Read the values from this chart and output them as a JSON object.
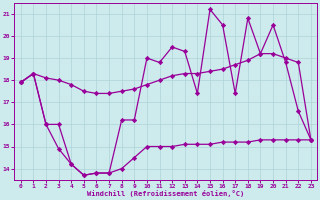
{
  "xlabel": "Windchill (Refroidissement éolien,°C)",
  "x_ticks": [
    0,
    1,
    2,
    3,
    4,
    5,
    6,
    7,
    8,
    9,
    10,
    11,
    12,
    13,
    14,
    15,
    16,
    17,
    18,
    19,
    20,
    21,
    22,
    23
  ],
  "ylim": [
    13.5,
    21.5
  ],
  "xlim": [
    -0.5,
    23.5
  ],
  "yticks": [
    14,
    15,
    16,
    17,
    18,
    19,
    20,
    21
  ],
  "bg_color": "#cdeaed",
  "grid_color": "#acd4d8",
  "line_color": "#990099",
  "series": [
    {
      "x": [
        0,
        1,
        2,
        3,
        4,
        5,
        6,
        7,
        8,
        9,
        10,
        11,
        12,
        13,
        14,
        15,
        16,
        17,
        18,
        19,
        20,
        21,
        22,
        23
      ],
      "y": [
        17.9,
        18.3,
        18.1,
        18.0,
        17.8,
        17.5,
        17.4,
        17.4,
        17.5,
        17.6,
        17.8,
        18.0,
        18.2,
        18.3,
        18.3,
        18.4,
        18.5,
        18.7,
        18.9,
        19.2,
        19.2,
        19.0,
        18.8,
        15.3
      ]
    },
    {
      "x": [
        0,
        1,
        2,
        3,
        4,
        5,
        6,
        7,
        8,
        9,
        10,
        11,
        12,
        13,
        14,
        15,
        16,
        17,
        18,
        19,
        20,
        21,
        22,
        23
      ],
      "y": [
        17.9,
        18.3,
        16.0,
        14.9,
        14.2,
        13.7,
        13.8,
        13.8,
        14.0,
        14.5,
        15.0,
        15.0,
        15.0,
        15.1,
        15.1,
        15.1,
        15.2,
        15.2,
        15.2,
        15.3,
        15.3,
        15.3,
        15.3,
        15.3
      ]
    },
    {
      "x": [
        0,
        1,
        2,
        3,
        4,
        5,
        6,
        7,
        8,
        9,
        10,
        11,
        12,
        13,
        14,
        15,
        16,
        17,
        18,
        19,
        20,
        21,
        22,
        23
      ],
      "y": [
        17.9,
        18.3,
        16.0,
        16.0,
        14.2,
        13.7,
        13.8,
        13.8,
        16.2,
        16.2,
        19.0,
        18.8,
        19.5,
        19.3,
        17.4,
        21.2,
        20.5,
        17.4,
        20.8,
        19.2,
        20.5,
        18.8,
        16.6,
        15.3
      ]
    }
  ]
}
